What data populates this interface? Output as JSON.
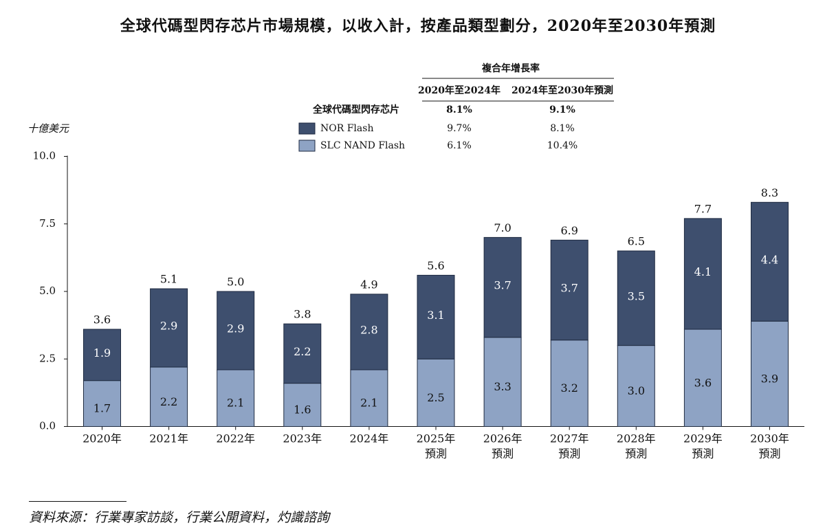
{
  "chart_data": {
    "type": "bar",
    "stacked": true,
    "title": "全球代碼型閃存芯片市場規模，以收入計，按產品類型劃分，2020年至2030年預測",
    "ylabel": "十億美元",
    "ylim": [
      0,
      10
    ],
    "yticks": [
      "0.0",
      "2.5",
      "5.0",
      "7.5",
      "10.0"
    ],
    "ytick_values": [
      0,
      2.5,
      5,
      7.5,
      10
    ],
    "categories": [
      [
        "2020年"
      ],
      [
        "2021年"
      ],
      [
        "2022年"
      ],
      [
        "2023年"
      ],
      [
        "2024年"
      ],
      [
        "2025年",
        "預測"
      ],
      [
        "2026年",
        "預測"
      ],
      [
        "2027年",
        "預測"
      ],
      [
        "2028年",
        "預測"
      ],
      [
        "2029年",
        "預測"
      ],
      [
        "2030年",
        "預測"
      ]
    ],
    "series": [
      {
        "name": "SLC NAND Flash",
        "color": "#8ea3c4",
        "values": [
          1.7,
          2.2,
          2.1,
          1.6,
          2.1,
          2.5,
          3.3,
          3.2,
          3.0,
          3.6,
          3.9
        ]
      },
      {
        "name": "NOR Flash",
        "color": "#3e4f6e",
        "values": [
          1.9,
          2.9,
          2.9,
          2.2,
          2.8,
          3.1,
          3.7,
          3.7,
          3.5,
          4.1,
          4.4
        ]
      }
    ],
    "totals": [
      3.6,
      5.1,
      5.0,
      3.8,
      4.9,
      5.6,
      7.0,
      6.9,
      6.5,
      7.7,
      8.3
    ],
    "cagr_table": {
      "header": "複合年增長率",
      "columns": [
        "2020年至2024年",
        "2024年至2030年預測"
      ],
      "rows": [
        {
          "label": "全球代碼型閃存芯片",
          "values": [
            "8.1%",
            "9.1%"
          ],
          "bold": true
        },
        {
          "label": "NOR Flash",
          "values": [
            "9.7%",
            "8.1%"
          ],
          "swatch": "#3e4f6e"
        },
        {
          "label": "SLC NAND Flash",
          "values": [
            "6.1%",
            "10.4%"
          ],
          "swatch": "#8ea3c4"
        }
      ]
    }
  },
  "source": "資料來源：行業專家訪談，行業公開資料，灼識諮詢"
}
